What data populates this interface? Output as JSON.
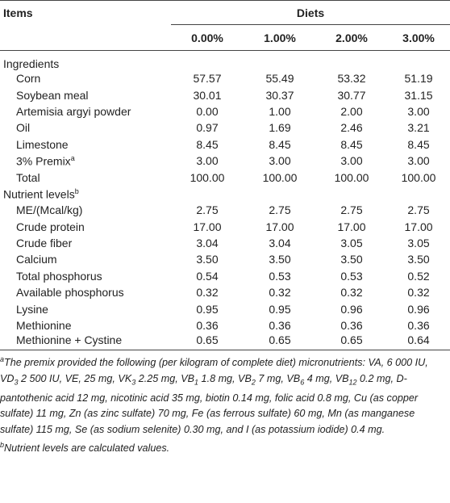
{
  "table": {
    "header": {
      "items": "Items",
      "group": "Diets",
      "columns": [
        "0.00%",
        "1.00%",
        "2.00%",
        "3.00%"
      ]
    },
    "sections": [
      {
        "title": "Ingredients",
        "rows": [
          {
            "label": "Corn",
            "values": [
              "57.57",
              "55.49",
              "53.32",
              "51.19"
            ]
          },
          {
            "label": "Soybean meal",
            "values": [
              "30.01",
              "30.37",
              "30.77",
              "31.15"
            ]
          },
          {
            "label": "Artemisia argyi powder",
            "values": [
              "0.00",
              "1.00",
              "2.00",
              "3.00"
            ]
          },
          {
            "label": "Oil",
            "values": [
              "0.97",
              "1.69",
              "2.46",
              "3.21"
            ]
          },
          {
            "label": "Limestone",
            "values": [
              "8.45",
              "8.45",
              "8.45",
              "8.45"
            ]
          },
          {
            "label": "3% Premix",
            "sup": "a",
            "values": [
              "3.00",
              "3.00",
              "3.00",
              "3.00"
            ]
          },
          {
            "label": "Total",
            "values": [
              "100.00",
              "100.00",
              "100.00",
              "100.00"
            ]
          }
        ]
      },
      {
        "title": "Nutrient levels",
        "sup": "b",
        "rows": [
          {
            "label": "ME/(Mcal/kg)",
            "values": [
              "2.75",
              "2.75",
              "2.75",
              "2.75"
            ]
          },
          {
            "label": "Crude protein",
            "values": [
              "17.00",
              "17.00",
              "17.00",
              "17.00"
            ]
          },
          {
            "label": "Crude fiber",
            "values": [
              "3.04",
              "3.04",
              "3.05",
              "3.05"
            ]
          },
          {
            "label": "Calcium",
            "values": [
              "3.50",
              "3.50",
              "3.50",
              "3.50"
            ]
          },
          {
            "label": "Total phosphorus",
            "values": [
              "0.54",
              "0.53",
              "0.53",
              "0.52"
            ]
          },
          {
            "label": "Available phosphorus",
            "values": [
              "0.32",
              "0.32",
              "0.32",
              "0.32"
            ]
          },
          {
            "label": "Lysine",
            "values": [
              "0.95",
              "0.95",
              "0.96",
              "0.96"
            ]
          },
          {
            "label": "Methionine",
            "values": [
              "0.36",
              "0.36",
              "0.36",
              "0.36"
            ]
          },
          {
            "label": "Methionine + Cystine",
            "values": [
              "0.65",
              "0.65",
              "0.65",
              "0.64"
            ]
          }
        ]
      }
    ]
  },
  "footnotes": [
    {
      "mark": "a",
      "parts": [
        {
          "text": "The premix provided the following (per kilogram of complete diet) micronutrients: VA, 6 000 IU, VD"
        },
        {
          "sub": "3"
        },
        {
          "text": " 2 500 IU, VE, 25 mg, VK"
        },
        {
          "sub": "3"
        },
        {
          "text": " 2.25 mg, VB"
        },
        {
          "sub": "1"
        },
        {
          "text": " 1.8 mg, VB"
        },
        {
          "sub": "2"
        },
        {
          "text": " 7 mg, VB"
        },
        {
          "sub": "6"
        },
        {
          "text": " 4 mg, VB"
        },
        {
          "sub": "12"
        },
        {
          "text": " 0.2 mg, D-pantothenic acid 12 mg, nicotinic acid 35 mg, biotin 0.14 mg, folic acid 0.8 mg, Cu (as copper sulfate) 11 mg, Zn (as zinc sulfate) 70 mg, Fe (as ferrous sulfate) 60 mg, Mn (as manganese sulfate) 115 mg, Se (as sodium selenite) 0.30 mg, and I (as potassium iodide) 0.4 mg."
        }
      ]
    },
    {
      "mark": "b",
      "parts": [
        {
          "text": "Nutrient levels are calculated values."
        }
      ]
    }
  ]
}
